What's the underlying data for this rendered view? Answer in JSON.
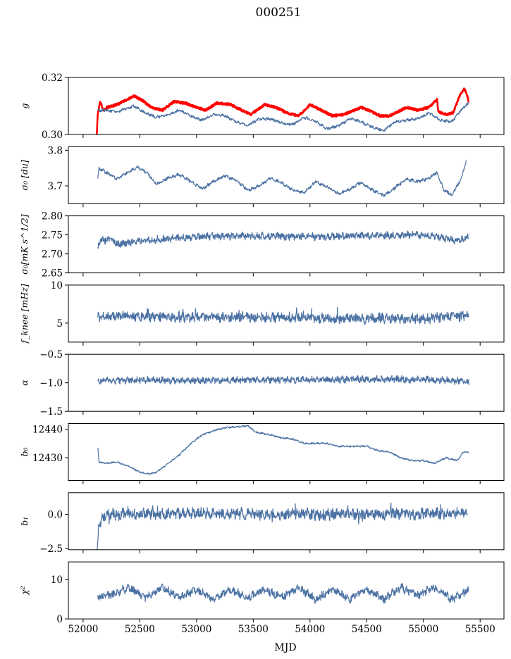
{
  "title": "000251",
  "chart_data": {
    "type": "line",
    "title": "000251",
    "xlabel": "MJD",
    "xlim": [
      51870,
      55710
    ],
    "x_range": [
      52120,
      55400
    ],
    "xticks": [
      52000,
      52500,
      53000,
      53500,
      54000,
      54500,
      55000,
      55500
    ],
    "xtick_labels": [
      "52000",
      "52500",
      "53000",
      "53500",
      "54000",
      "54500",
      "55000",
      "55500"
    ],
    "grid": false,
    "panels": [
      {
        "key": "g",
        "ylabel": "g",
        "ylim": [
          0.3,
          0.32
        ],
        "yticks": [
          0.3,
          0.32
        ],
        "ytick_labels": [
          "0.30",
          "0.32"
        ],
        "series": [
          {
            "color": "#ff0000",
            "points": [
              [
                52120,
                0.3
              ],
              [
                52130,
                0.3075
              ],
              [
                52150,
                0.3115
              ],
              [
                52180,
                0.3085
              ],
              [
                52210,
                0.3095
              ],
              [
                52300,
                0.3105
              ],
              [
                52450,
                0.3135
              ],
              [
                52520,
                0.312
              ],
              [
                52600,
                0.3095
              ],
              [
                52700,
                0.3085
              ],
              [
                52800,
                0.3115
              ],
              [
                52900,
                0.311
              ],
              [
                53000,
                0.3095
              ],
              [
                53080,
                0.3085
              ],
              [
                53180,
                0.311
              ],
              [
                53300,
                0.3105
              ],
              [
                53400,
                0.3085
              ],
              [
                53480,
                0.307
              ],
              [
                53600,
                0.3105
              ],
              [
                53700,
                0.3095
              ],
              [
                53800,
                0.3075
              ],
              [
                53900,
                0.3065
              ],
              [
                54000,
                0.3105
              ],
              [
                54100,
                0.3085
              ],
              [
                54200,
                0.3065
              ],
              [
                54300,
                0.307
              ],
              [
                54450,
                0.3095
              ],
              [
                54520,
                0.3085
              ],
              [
                54620,
                0.3065
              ],
              [
                54700,
                0.3065
              ],
              [
                54850,
                0.3095
              ],
              [
                54950,
                0.3085
              ],
              [
                55050,
                0.3095
              ],
              [
                55120,
                0.3125
              ],
              [
                55130,
                0.308
              ],
              [
                55200,
                0.307
              ],
              [
                55260,
                0.3075
              ],
              [
                55330,
                0.3145
              ],
              [
                55360,
                0.316
              ],
              [
                55380,
                0.3145
              ],
              [
                55400,
                0.3115
              ]
            ]
          },
          {
            "color": "#4c72a4",
            "points": [
              [
                52130,
                0.3085
              ],
              [
                52200,
                0.3085
              ],
              [
                52300,
                0.308
              ],
              [
                52450,
                0.31
              ],
              [
                52550,
                0.3075
              ],
              [
                52650,
                0.306
              ],
              [
                52750,
                0.307
              ],
              [
                52850,
                0.3085
              ],
              [
                52950,
                0.3065
              ],
              [
                53050,
                0.305
              ],
              [
                53150,
                0.307
              ],
              [
                53250,
                0.3065
              ],
              [
                53350,
                0.3045
              ],
              [
                53450,
                0.303
              ],
              [
                53550,
                0.3055
              ],
              [
                53650,
                0.3055
              ],
              [
                53750,
                0.304
              ],
              [
                53850,
                0.3035
              ],
              [
                53950,
                0.306
              ],
              [
                54050,
                0.3045
              ],
              [
                54150,
                0.302
              ],
              [
                54250,
                0.303
              ],
              [
                54350,
                0.3055
              ],
              [
                54450,
                0.3045
              ],
              [
                54550,
                0.3025
              ],
              [
                54650,
                0.3015
              ],
              [
                54750,
                0.3045
              ],
              [
                54850,
                0.305
              ],
              [
                54950,
                0.3055
              ],
              [
                55050,
                0.3075
              ],
              [
                55150,
                0.305
              ],
              [
                55250,
                0.3045
              ],
              [
                55330,
                0.3085
              ],
              [
                55400,
                0.311
              ]
            ]
          }
        ]
      },
      {
        "key": "sigma0",
        "ylabel": "σ₀ [du]",
        "ylim": [
          3.65,
          3.81
        ],
        "yticks": [
          3.7,
          3.8
        ],
        "ytick_labels": [
          "3.7",
          "3.8"
        ],
        "series": [
          {
            "color": "#4c72a4",
            "points": [
              [
                52130,
                3.72
              ],
              [
                52140,
                3.75
              ],
              [
                52200,
                3.738
              ],
              [
                52300,
                3.72
              ],
              [
                52400,
                3.74
              ],
              [
                52480,
                3.752
              ],
              [
                52550,
                3.74
              ],
              [
                52650,
                3.705
              ],
              [
                52750,
                3.722
              ],
              [
                52850,
                3.732
              ],
              [
                52950,
                3.712
              ],
              [
                53050,
                3.692
              ],
              [
                53150,
                3.712
              ],
              [
                53250,
                3.728
              ],
              [
                53350,
                3.715
              ],
              [
                53450,
                3.688
              ],
              [
                53550,
                3.698
              ],
              [
                53650,
                3.722
              ],
              [
                53750,
                3.708
              ],
              [
                53850,
                3.688
              ],
              [
                53950,
                3.682
              ],
              [
                54050,
                3.712
              ],
              [
                54150,
                3.698
              ],
              [
                54250,
                3.678
              ],
              [
                54350,
                3.69
              ],
              [
                54450,
                3.71
              ],
              [
                54550,
                3.688
              ],
              [
                54650,
                3.672
              ],
              [
                54750,
                3.695
              ],
              [
                54850,
                3.718
              ],
              [
                54950,
                3.712
              ],
              [
                55050,
                3.722
              ],
              [
                55120,
                3.738
              ],
              [
                55180,
                3.688
              ],
              [
                55250,
                3.675
              ],
              [
                55330,
                3.718
              ],
              [
                55380,
                3.772
              ]
            ]
          }
        ]
      },
      {
        "key": "sigma0k",
        "ylabel": "σ₀[mK s^1/2]",
        "ylim": [
          2.65,
          2.8
        ],
        "yticks": [
          2.65,
          2.7,
          2.75,
          2.8
        ],
        "ytick_labels": [
          "2.65",
          "2.70",
          "2.75",
          "2.80"
        ],
        "series": [
          {
            "color": "#4c72a4",
            "points": [
              [
                52130,
                2.716
              ],
              [
                52150,
                2.735
              ],
              [
                52250,
                2.738
              ],
              [
                52300,
                2.725
              ],
              [
                52500,
                2.735
              ],
              [
                53000,
                2.745
              ],
              [
                53500,
                2.747
              ],
              [
                54000,
                2.745
              ],
              [
                54500,
                2.748
              ],
              [
                55000,
                2.75
              ],
              [
                55300,
                2.735
              ],
              [
                55400,
                2.745
              ]
            ]
          }
        ]
      },
      {
        "key": "fknee",
        "ylabel": "f_knee [mHz]",
        "ylim": [
          2.5,
          10
        ],
        "yticks": [
          5,
          10
        ],
        "ytick_labels": [
          "5",
          "10"
        ],
        "series": [
          {
            "color": "#4c72a4",
            "points": [
              [
                52130,
                5.8
              ],
              [
                52500,
                5.9
              ],
              [
                53000,
                5.7
              ],
              [
                53500,
                5.8
              ],
              [
                54000,
                5.7
              ],
              [
                54500,
                5.6
              ],
              [
                55000,
                5.6
              ],
              [
                55400,
                6.0
              ]
            ]
          }
        ]
      },
      {
        "key": "alpha",
        "ylabel": "α",
        "ylim": [
          -1.5,
          -0.5
        ],
        "yticks": [
          -1.5,
          -1.0,
          -0.5
        ],
        "ytick_labels": [
          "−1.5",
          "−1.0",
          "−0.5"
        ],
        "series": [
          {
            "color": "#4c72a4",
            "points": [
              [
                52130,
                -0.96
              ],
              [
                52500,
                -0.95
              ],
              [
                53000,
                -0.96
              ],
              [
                53500,
                -0.95
              ],
              [
                54000,
                -0.95
              ],
              [
                54500,
                -0.94
              ],
              [
                55000,
                -0.94
              ],
              [
                55400,
                -0.98
              ]
            ]
          }
        ]
      },
      {
        "key": "b0",
        "ylabel": "b₀",
        "ylim": [
          12422,
          12442
        ],
        "yticks": [
          12430,
          12440
        ],
        "ytick_labels": [
          "12430",
          "12440"
        ],
        "series": [
          {
            "color": "#4c72a4",
            "points": [
              [
                52130,
                12433.5
              ],
              [
                52140,
                12428.5
              ],
              [
                52200,
                12428.0
              ],
              [
                52300,
                12428.5
              ],
              [
                52400,
                12427.0
              ],
              [
                52500,
                12425.0
              ],
              [
                52580,
                12424.2
              ],
              [
                52650,
                12425.0
              ],
              [
                52750,
                12428.0
              ],
              [
                52850,
                12431.0
              ],
              [
                52950,
                12435.0
              ],
              [
                53050,
                12438.0
              ],
              [
                53150,
                12439.5
              ],
              [
                53250,
                12440.5
              ],
              [
                53350,
                12440.8
              ],
              [
                53450,
                12441.2
              ],
              [
                53520,
                12439.0
              ],
              [
                53650,
                12438.0
              ],
              [
                53750,
                12437.0
              ],
              [
                53850,
                12436.5
              ],
              [
                53950,
                12435.0
              ],
              [
                54050,
                12435.0
              ],
              [
                54150,
                12435.0
              ],
              [
                54250,
                12434.0
              ],
              [
                54400,
                12434.0
              ],
              [
                54500,
                12434.0
              ],
              [
                54600,
                12432.5
              ],
              [
                54700,
                12432.0
              ],
              [
                54800,
                12430.0
              ],
              [
                54900,
                12429.0
              ],
              [
                55000,
                12429.0
              ],
              [
                55100,
                12428.0
              ],
              [
                55200,
                12430.0
              ],
              [
                55300,
                12429.0
              ],
              [
                55350,
                12432.0
              ],
              [
                55400,
                12432.0
              ]
            ]
          }
        ]
      },
      {
        "key": "b1",
        "ylabel": "b₁",
        "ylim": [
          -2.6,
          1.6
        ],
        "yticks": [
          -2.5,
          0.0
        ],
        "ytick_labels": [
          "−2.5",
          "0.0"
        ],
        "series": [
          {
            "color": "#4c72a4",
            "points": [
              [
                52125,
                -2.5
              ],
              [
                52140,
                -0.6
              ],
              [
                52200,
                0.0
              ],
              [
                53000,
                0.05
              ],
              [
                54000,
                0.0
              ],
              [
                55000,
                0.05
              ],
              [
                55390,
                0.1
              ]
            ]
          }
        ]
      },
      {
        "key": "chi2",
        "ylabel": "χ²",
        "ylim": [
          0,
          14.5
        ],
        "yticks": [
          0,
          10
        ],
        "ytick_labels": [
          "0",
          "10"
        ],
        "series": [
          {
            "color": "#4c72a4",
            "points": [
              [
                52130,
                5.5
              ],
              [
                52250,
                6.0
              ],
              [
                52400,
                8.0
              ],
              [
                52550,
                5.5
              ],
              [
                52700,
                8.0
              ],
              [
                52850,
                5.5
              ],
              [
                53000,
                7.5
              ],
              [
                53150,
                5.0
              ],
              [
                53300,
                7.5
              ],
              [
                53450,
                5.5
              ],
              [
                53600,
                7.5
              ],
              [
                53750,
                5.5
              ],
              [
                53900,
                8.0
              ],
              [
                54050,
                5.0
              ],
              [
                54200,
                7.5
              ],
              [
                54350,
                5.0
              ],
              [
                54500,
                7.5
              ],
              [
                54650,
                5.0
              ],
              [
                54800,
                8.0
              ],
              [
                54950,
                6.0
              ],
              [
                55100,
                8.0
              ],
              [
                55250,
                5.0
              ],
              [
                55400,
                7.5
              ]
            ]
          }
        ]
      }
    ]
  }
}
